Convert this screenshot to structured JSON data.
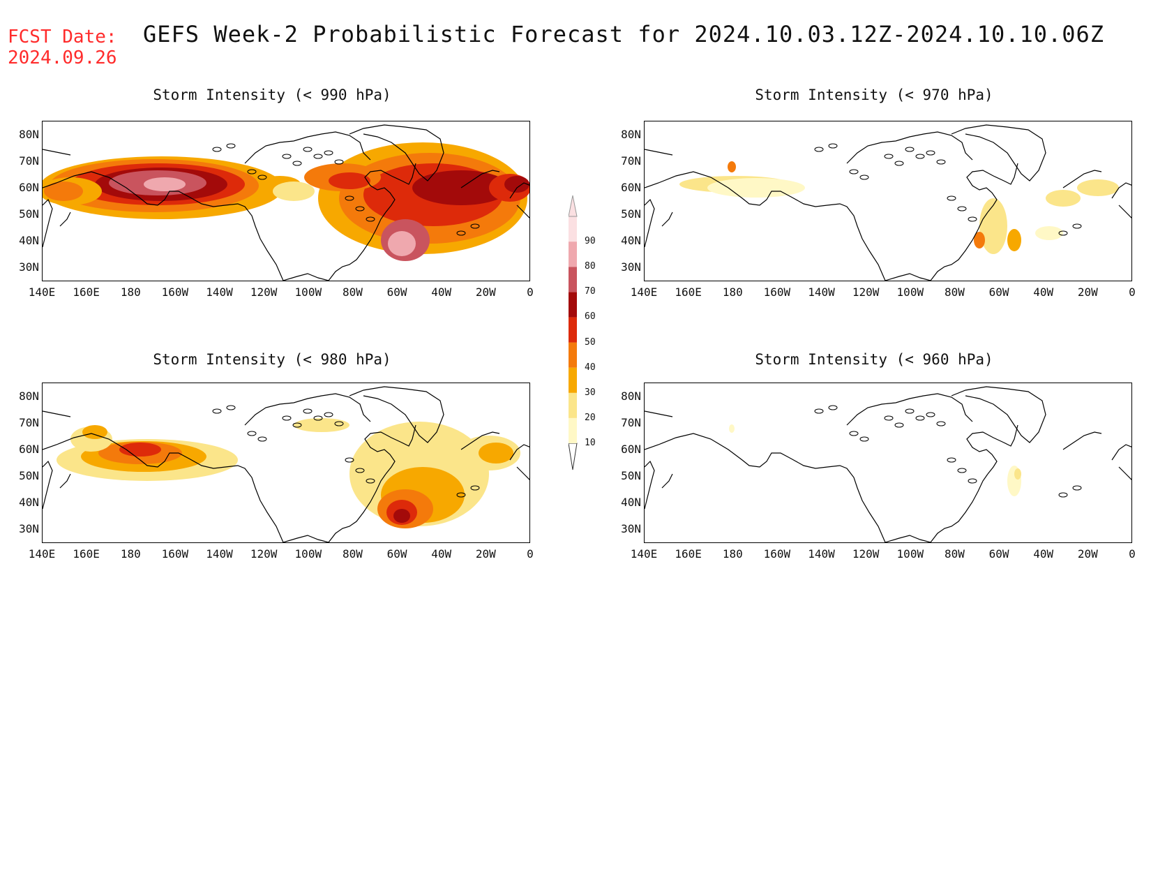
{
  "header": {
    "fcst_label": "FCST Date:",
    "fcst_date": "2024.09.26",
    "title": "GEFS Week-2 Probabilistic Forecast for 2024.10.03.12Z-2024.10.10.06Z"
  },
  "panels": [
    {
      "id": "p990",
      "title": "Storm Intensity (< 990 hPa)",
      "intensity": "high"
    },
    {
      "id": "p970",
      "title": "Storm Intensity (< 970 hPa)",
      "intensity": "low"
    },
    {
      "id": "p980",
      "title": "Storm Intensity (< 980 hPa)",
      "intensity": "medium"
    },
    {
      "id": "p960",
      "title": "Storm Intensity (< 960 hPa)",
      "intensity": "minimal"
    }
  ],
  "axes": {
    "lat_labels": [
      "80N",
      "70N",
      "60N",
      "50N",
      "40N",
      "30N"
    ],
    "lon_labels": [
      "140E",
      "160E",
      "180",
      "160W",
      "140W",
      "120W",
      "100W",
      "80W",
      "60W",
      "40W",
      "20W",
      "0"
    ]
  },
  "colorbar": {
    "levels": [
      "10",
      "20",
      "30",
      "40",
      "50",
      "60",
      "70",
      "80",
      "90"
    ],
    "colors": [
      "#fff8c6",
      "#fbe58a",
      "#f7a800",
      "#f47a0b",
      "#dd2a0a",
      "#a30a0a",
      "#c9545e",
      "#efa8ae",
      "#fbe0e2"
    ]
  }
}
